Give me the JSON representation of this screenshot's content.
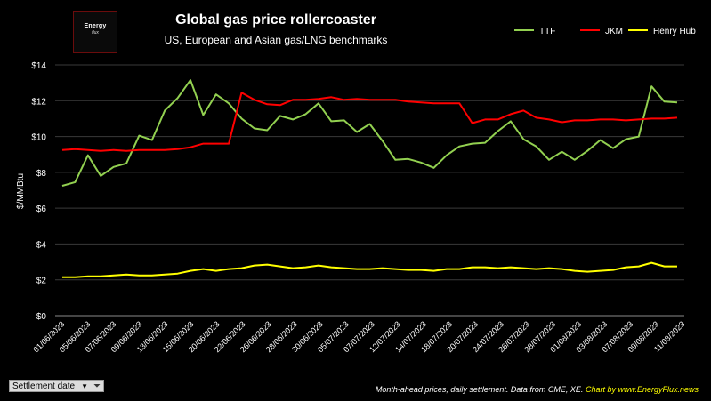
{
  "logo": {
    "line1": "Energy",
    "line2": "flux"
  },
  "filter": {
    "label": "Settlement date"
  },
  "footer": {
    "source": "Month-ahead prices, daily settlement. Data from CME, XE.",
    "credit": "Chart by www.EnergyFlux.news"
  },
  "chart_data": {
    "type": "line",
    "title": "Global gas price rollercoaster",
    "subtitle": "US, European and Asian gas/LNG benchmarks",
    "ylabel": "$/MMBtu",
    "xlabel": "",
    "ylim": [
      0,
      14
    ],
    "yticks": [
      "$0",
      "$2",
      "$4",
      "$6",
      "$8",
      "$10",
      "$12",
      "$14"
    ],
    "ytick_values": [
      0,
      2,
      4,
      6,
      8,
      10,
      12,
      14
    ],
    "grid": true,
    "legend_position": "top-right",
    "x_tick_labels": [
      "01/06/2023",
      "05/06/2023",
      "07/06/2023",
      "09/06/2023",
      "13/06/2023",
      "15/06/2023",
      "20/06/2023",
      "22/06/2023",
      "26/06/2023",
      "28/06/2023",
      "30/06/2023",
      "05/07/2023",
      "07/07/2023",
      "12/07/2023",
      "14/07/2023",
      "18/07/2023",
      "20/07/2023",
      "24/07/2023",
      "26/07/2023",
      "28/07/2023",
      "01/08/2023",
      "03/08/2023",
      "07/08/2023",
      "09/08/2023",
      "11/08/2023"
    ],
    "series": [
      {
        "name": "TTF",
        "color": "#92d050",
        "values": [
          7.25,
          7.45,
          8.95,
          7.8,
          8.3,
          8.5,
          10.05,
          9.8,
          11.45,
          12.15,
          13.15,
          11.2,
          12.35,
          11.85,
          11.0,
          10.45,
          10.35,
          11.15,
          10.95,
          11.25,
          11.85,
          10.85,
          10.9,
          10.25,
          10.7,
          9.75,
          8.7,
          8.75,
          8.55,
          8.25,
          8.95,
          9.45,
          9.6,
          9.65,
          10.3,
          10.85,
          9.85,
          9.45,
          8.7,
          9.15,
          8.7,
          9.2,
          9.8,
          9.35,
          9.85,
          10.0,
          12.8,
          11.95,
          11.9
        ]
      },
      {
        "name": "JKM",
        "color": "#ff0000",
        "values": [
          9.25,
          9.3,
          9.25,
          9.2,
          9.25,
          9.2,
          9.25,
          9.25,
          9.25,
          9.3,
          9.4,
          9.6,
          9.6,
          9.6,
          12.45,
          12.05,
          11.8,
          11.75,
          12.05,
          12.05,
          12.1,
          12.2,
          12.05,
          12.1,
          12.05,
          12.05,
          12.05,
          11.95,
          11.9,
          11.85,
          11.85,
          11.85,
          10.75,
          10.95,
          10.95,
          11.25,
          11.45,
          11.05,
          10.95,
          10.8,
          10.9,
          10.9,
          10.95,
          10.95,
          10.9,
          10.95,
          11.0,
          11.0,
          11.05
        ]
      },
      {
        "name": "Henry Hub",
        "color": "#ffff00",
        "values": [
          2.15,
          2.15,
          2.2,
          2.2,
          2.25,
          2.3,
          2.25,
          2.25,
          2.3,
          2.35,
          2.5,
          2.6,
          2.5,
          2.6,
          2.65,
          2.8,
          2.85,
          2.75,
          2.65,
          2.7,
          2.8,
          2.7,
          2.65,
          2.6,
          2.6,
          2.65,
          2.6,
          2.55,
          2.55,
          2.5,
          2.6,
          2.6,
          2.7,
          2.7,
          2.65,
          2.7,
          2.65,
          2.6,
          2.65,
          2.6,
          2.5,
          2.45,
          2.5,
          2.55,
          2.7,
          2.75,
          2.95,
          2.75,
          2.75
        ]
      }
    ]
  }
}
